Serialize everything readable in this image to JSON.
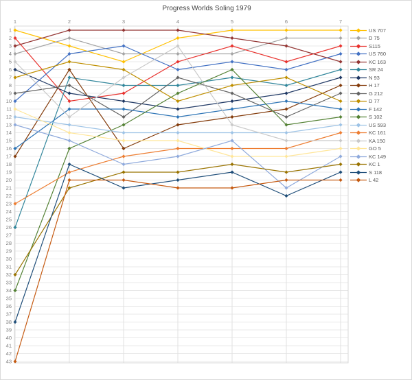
{
  "title": "Progress Worlds Soling 1979",
  "chart_data": {
    "type": "line",
    "title": "Progress Worlds Soling 1979",
    "x": [
      1,
      2,
      3,
      4,
      5,
      6,
      7
    ],
    "x_axis_position": "top",
    "xlabel": "",
    "ylabel": "",
    "y_axis_inverted": true,
    "y_min": 1,
    "y_max": 43,
    "y_tick_step": 1,
    "grid": true,
    "legend_position": "right",
    "grid_color": "#e8e8e8",
    "series": [
      {
        "name": "US 707",
        "color": "#FFC000",
        "values": [
          1,
          3,
          5,
          2,
          1,
          1,
          1
        ]
      },
      {
        "name": "D 75",
        "color": "#A5A5A5",
        "values": [
          4,
          2,
          4,
          4,
          4,
          2,
          2
        ]
      },
      {
        "name": "S115",
        "color": "#E8322E",
        "values": [
          2,
          10,
          9,
          5,
          3,
          5,
          3
        ]
      },
      {
        "name": "US 760",
        "color": "#4472C4",
        "values": [
          10,
          4,
          3,
          6,
          5,
          6,
          4
        ]
      },
      {
        "name": "KC 163",
        "color": "#943634",
        "values": [
          3,
          1,
          1,
          1,
          2,
          3,
          5
        ]
      },
      {
        "name": "SR 24",
        "color": "#31869B",
        "values": [
          26,
          7,
          8,
          8,
          7,
          8,
          6
        ]
      },
      {
        "name": "N 93",
        "color": "#1F3864",
        "values": [
          6,
          9,
          10,
          11,
          10,
          9,
          7
        ]
      },
      {
        "name": "H 17",
        "color": "#843C0C",
        "values": [
          17,
          6,
          16,
          13,
          12,
          11,
          8
        ]
      },
      {
        "name": "G 212",
        "color": "#636363",
        "values": [
          9,
          8,
          12,
          7,
          9,
          12,
          9
        ]
      },
      {
        "name": "D 77",
        "color": "#BF8F00",
        "values": [
          7,
          5,
          6,
          10,
          8,
          7,
          10
        ]
      },
      {
        "name": "F 142",
        "color": "#2E75B6",
        "values": [
          16,
          11,
          11,
          12,
          11,
          10,
          11
        ]
      },
      {
        "name": "S 102",
        "color": "#548235",
        "values": [
          34,
          16,
          13,
          9,
          6,
          13,
          12
        ]
      },
      {
        "name": "US 593",
        "color": "#9DC3E6",
        "values": [
          12,
          13,
          14,
          14,
          14,
          14,
          13
        ]
      },
      {
        "name": "KC 161",
        "color": "#ED7D31",
        "values": [
          23,
          19,
          17,
          16,
          16,
          16,
          14
        ]
      },
      {
        "name": "KA 150",
        "color": "#C9C9C9",
        "values": [
          5,
          12,
          7,
          3,
          13,
          15,
          15
        ]
      },
      {
        "name": "GO 5",
        "color": "#FFE699",
        "values": [
          11,
          14,
          15,
          15,
          17,
          17,
          16
        ]
      },
      {
        "name": "KC 149",
        "color": "#8FAADC",
        "values": [
          13,
          15,
          18,
          17,
          15,
          21,
          17
        ]
      },
      {
        "name": "KC 1",
        "color": "#997300",
        "values": [
          32,
          21,
          19,
          19,
          18,
          19,
          18
        ]
      },
      {
        "name": "S 118",
        "color": "#1F4E79",
        "values": [
          38,
          18,
          21,
          20,
          19,
          22,
          19
        ]
      },
      {
        "name": "L 42",
        "color": "#C55A11",
        "values": [
          43,
          20,
          20,
          21,
          21,
          20,
          20
        ]
      }
    ]
  }
}
